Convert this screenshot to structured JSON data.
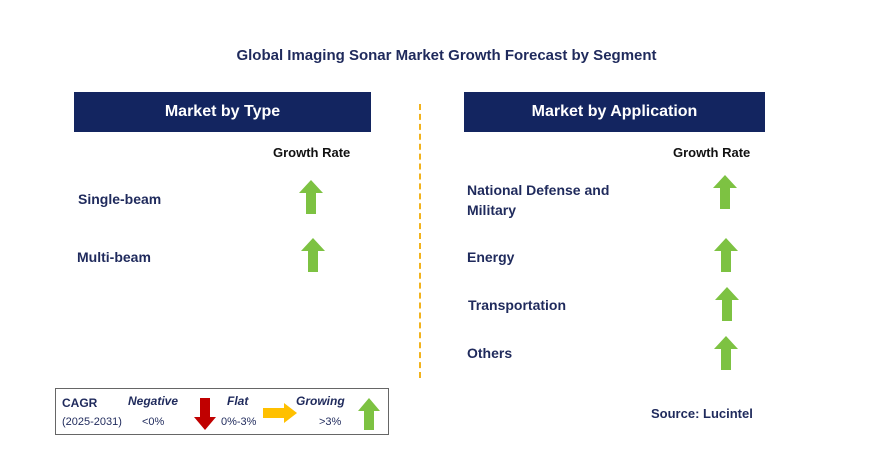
{
  "title": "Global Imaging Sonar Market Growth Forecast by Segment",
  "left_panel": {
    "header": "Market by Type",
    "growth_label": "Growth Rate",
    "rows": [
      {
        "label": "Single-beam",
        "trend": "growing"
      },
      {
        "label": "Multi-beam",
        "trend": "growing"
      }
    ]
  },
  "right_panel": {
    "header": "Market by Application",
    "growth_label": "Growth Rate",
    "rows": [
      {
        "label_line1": "National Defense and",
        "label_line2": "Military",
        "trend": "growing"
      },
      {
        "label": "Energy",
        "trend": "growing"
      },
      {
        "label": "Transportation",
        "trend": "growing"
      },
      {
        "label": "Others",
        "trend": "growing"
      }
    ]
  },
  "legend": {
    "cagr": "CAGR",
    "period": "(2025-2031)",
    "negative_label": "Negative",
    "negative_value": "<0%",
    "flat_label": "Flat",
    "flat_value": "0%-3%",
    "growing_label": "Growing",
    "growing_value": ">3%"
  },
  "source": "Source: Lucintel",
  "colors": {
    "header_bg": "#132560",
    "text": "#1f2a5c",
    "growing": "#7dc242",
    "negative": "#c00000",
    "flat": "#ffc000",
    "divider": "#f2b21c"
  },
  "icons": {
    "growing": "green-up-arrow-icon",
    "negative": "red-down-arrow-icon",
    "flat": "yellow-right-arrow-icon"
  }
}
